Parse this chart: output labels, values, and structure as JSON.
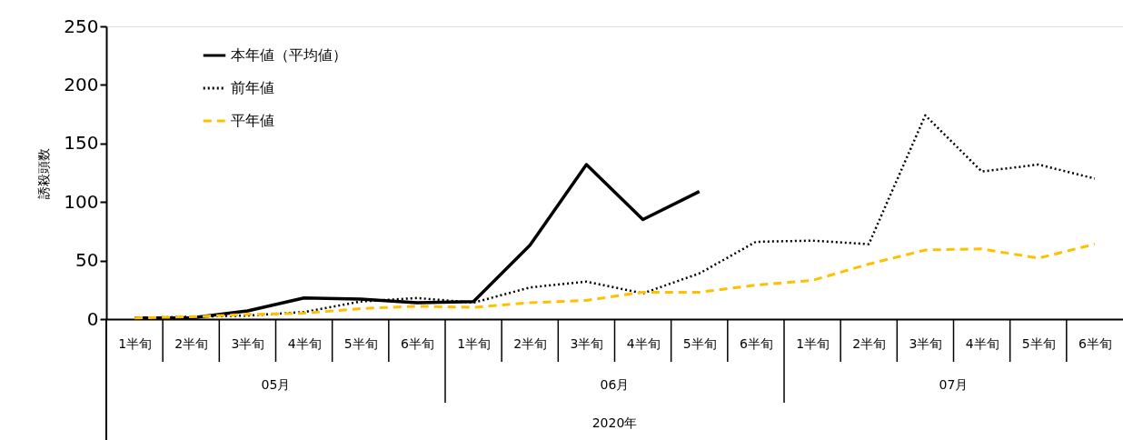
{
  "chart_data": {
    "type": "line",
    "ylabel": "誘殺頭数",
    "categories": [
      "1半旬",
      "2半旬",
      "3半旬",
      "4半旬",
      "5半旬",
      "6半旬",
      "1半旬",
      "2半旬",
      "3半旬",
      "4半旬",
      "5半旬",
      "6半旬",
      "1半旬",
      "2半旬",
      "3半旬",
      "4半旬",
      "5半旬",
      "6半旬"
    ],
    "series": [
      {
        "name": "本年値（平均値）",
        "color": "#000000",
        "line_style": "solid",
        "values": [
          1,
          1,
          7,
          18,
          17,
          14,
          15,
          63,
          132,
          85,
          109,
          null,
          null,
          null,
          null,
          null,
          null,
          null
        ]
      },
      {
        "name": "前年値",
        "color": "#000000",
        "line_style": "dotted",
        "values": [
          1,
          2,
          3,
          6,
          15,
          18,
          14,
          27,
          32,
          22,
          39,
          66,
          67,
          64,
          174,
          126,
          132,
          120
        ]
      },
      {
        "name": "平年値",
        "color": "#ffc000",
        "line_style": "dashed",
        "values": [
          1,
          2,
          4,
          5,
          9,
          11,
          10,
          14,
          16,
          23,
          23,
          29,
          33,
          47,
          59,
          60,
          52,
          64
        ]
      }
    ],
    "ylim": [
      0,
      250
    ],
    "yticks": [
      0,
      50,
      100,
      150,
      200,
      250
    ],
    "annotations": [
      "05月",
      "06月",
      "07月",
      "2020年"
    ],
    "grid": false,
    "legend": "top left",
    "marker": "none"
  }
}
